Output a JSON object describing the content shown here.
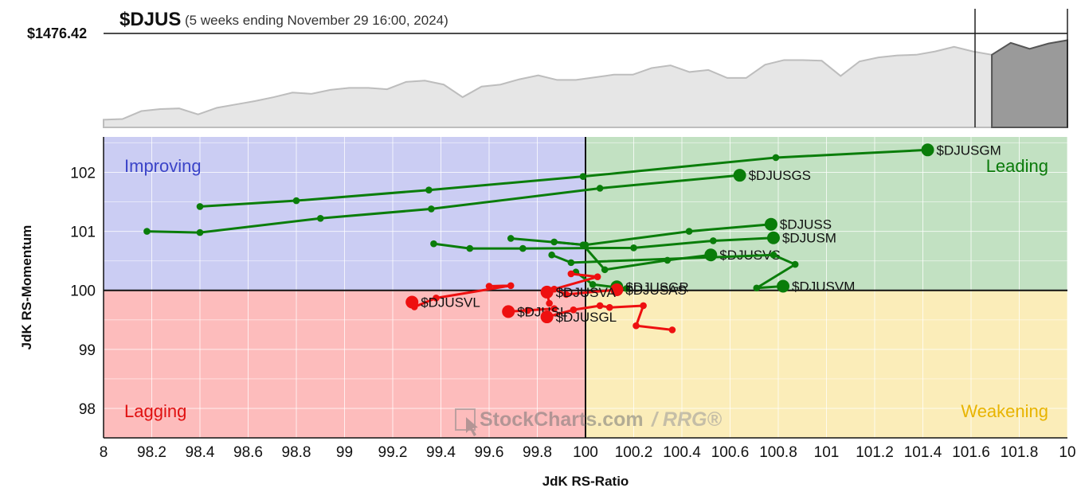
{
  "header": {
    "symbol": "$DJUS",
    "period": "(5 weeks ending November 29 16:00, 2024)",
    "price": "$1476.42"
  },
  "watermark": {
    "brand": "StockCharts.com",
    "suffix": "/ RRG®"
  },
  "colors": {
    "improving": "#cbcdf3",
    "leading": "#c2e1c2",
    "lagging": "#fdbcbc",
    "weakening": "#fbedb9",
    "improving_text": "#3b44c8",
    "leading_text": "#0a7a0a",
    "lagging_text": "#e01010",
    "weakening_text": "#e8b400",
    "green": "#0a7d0a",
    "red": "#ee1010",
    "price_fill": "#e6e6e6",
    "price_fill_dark": "#9a9a9a"
  },
  "chart_data": [
    {
      "type": "area",
      "title": "$DJUS",
      "subtitle": "(5 weeks ending November 29 16:00, 2024)",
      "price_label": "$1476.42",
      "values": [
        0.02,
        0.03,
        0.15,
        0.18,
        0.19,
        0.1,
        0.2,
        0.25,
        0.3,
        0.36,
        0.43,
        0.41,
        0.47,
        0.5,
        0.5,
        0.48,
        0.59,
        0.61,
        0.55,
        0.36,
        0.52,
        0.55,
        0.63,
        0.69,
        0.62,
        0.62,
        0.66,
        0.7,
        0.7,
        0.8,
        0.84,
        0.74,
        0.77,
        0.65,
        0.65,
        0.85,
        0.92,
        0.92,
        0.91,
        0.68,
        0.9,
        0.96,
        0.99,
        1.0,
        1.05,
        1.12,
        1.05,
        1.0,
        1.18,
        1.09,
        1.17,
        1.22
      ],
      "highlight_from_index": 47
    },
    {
      "type": "scatter",
      "xlabel": "JdK RS-Ratio",
      "ylabel": "JdK RS-Momentum",
      "xlim": [
        98,
        102
      ],
      "ylim": [
        97.5,
        102.6
      ],
      "x_center": 100,
      "y_center": 100,
      "xticks": [
        "8",
        "98.2",
        "98.4",
        "98.6",
        "98.8",
        "99",
        "99.2",
        "99.4",
        "99.6",
        "99.8",
        "100",
        "100.2",
        "100.4",
        "100.6",
        "100.8",
        "101",
        "101.2",
        "101.4",
        "101.6",
        "101.8",
        "10"
      ],
      "yticks": [
        "98",
        "99",
        "100",
        "101",
        "102"
      ],
      "quadrants": [
        "Improving",
        "Leading",
        "Lagging",
        "Weakening"
      ],
      "series": [
        {
          "name": "$DJUSGM",
          "color": "green",
          "x": [
            98.4,
            98.8,
            99.35,
            99.99,
            100.79,
            101.42
          ],
          "y": [
            101.42,
            101.52,
            101.7,
            101.93,
            102.25,
            102.38
          ]
        },
        {
          "name": "$DJUSGS",
          "color": "green",
          "x": [
            98.18,
            98.4,
            98.9,
            99.36,
            100.06,
            100.64
          ],
          "y": [
            101.0,
            100.98,
            101.22,
            101.38,
            101.73,
            101.95
          ]
        },
        {
          "name": "$DJUSS",
          "color": "green",
          "x": [
            99.69,
            100.0,
            100.43,
            100.77
          ],
          "y": [
            100.88,
            100.77,
            101.0,
            101.12
          ]
        },
        {
          "name": "$DJUSM",
          "color": "green",
          "x": [
            99.37,
            99.52,
            99.74,
            100.2,
            100.53,
            100.78
          ],
          "y": [
            100.79,
            100.71,
            100.71,
            100.72,
            100.84,
            100.89
          ]
        },
        {
          "name": "$DJUSVS",
          "color": "green",
          "x": [
            99.87,
            99.99,
            100.08,
            100.34,
            100.52
          ],
          "y": [
            100.82,
            100.77,
            100.35,
            100.51,
            100.6
          ]
        },
        {
          "name": "$DJUSVM",
          "color": "green",
          "x": [
            99.86,
            99.94,
            100.78,
            100.87,
            100.71,
            100.82
          ],
          "y": [
            100.6,
            100.47,
            100.6,
            100.44,
            100.04,
            100.07
          ]
        },
        {
          "name": "$DJUSGR",
          "color": "green",
          "x": [
            99.96,
            100.03,
            100.17,
            100.13
          ],
          "y": [
            100.31,
            100.1,
            100.03,
            100.06
          ]
        },
        {
          "name": "$DJUSAS",
          "color": "red",
          "x": [
            99.94,
            100.05,
            99.87,
            99.92,
            100.13
          ],
          "y": [
            100.28,
            100.23,
            100.02,
            99.93,
            100.01
          ]
        },
        {
          "name": "$DJUSVL",
          "color": "red",
          "x": [
            99.6,
            99.69,
            99.38,
            99.29,
            99.28
          ],
          "y": [
            100.07,
            100.08,
            99.87,
            99.72,
            99.8
          ]
        },
        {
          "name": "$DJUSVA",
          "color": "red",
          "x": [
            99.85,
            99.84
          ],
          "y": [
            99.78,
            99.97
          ]
        },
        {
          "name": "$DJUSL",
          "color": "red",
          "x": [
            99.87,
            99.76,
            99.68
          ],
          "y": [
            99.69,
            99.66,
            99.64
          ]
        },
        {
          "name": "$DJUSGL",
          "color": "red",
          "x": [
            100.36,
            100.21,
            100.24,
            100.1,
            100.06,
            99.95,
            99.84
          ],
          "y": [
            99.33,
            99.4,
            99.74,
            99.71,
            99.74,
            99.67,
            99.55
          ]
        }
      ]
    }
  ]
}
